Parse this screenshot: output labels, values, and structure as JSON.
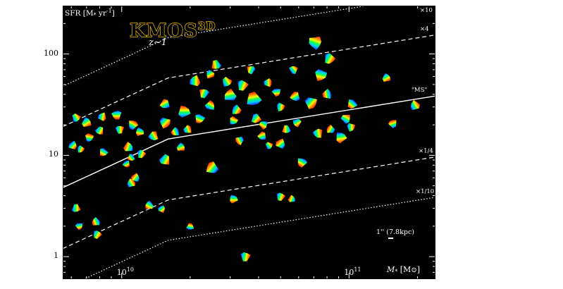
{
  "chart_data": {
    "type": "scatter",
    "title": "KMOS",
    "title_superscript": "3D",
    "subtitle": "z~1",
    "xlabel": "M",
    "xlabel_subscript": "*",
    "xlabel_unit": " [M",
    "xlabel_unit_end": "]",
    "ylabel": "SFR [M",
    "ylabel_unit": "yr",
    "ylabel_exp": "-1",
    "ylabel_end": "]",
    "x_scale": "log",
    "y_scale": "log",
    "xlim": [
      5500000000.0,
      240000000000.0
    ],
    "ylim": [
      0.6,
      300
    ],
    "x_ticks": [
      {
        "value": 10000000000.0,
        "label": "10",
        "exp": "10"
      },
      {
        "value": 100000000000.0,
        "label": "10",
        "exp": "11"
      }
    ],
    "y_ticks": [
      {
        "value": 1,
        "label": "1"
      },
      {
        "value": 10,
        "label": "10"
      },
      {
        "value": 100,
        "label": "100"
      }
    ],
    "grid": false,
    "background": "#000000",
    "scale_bar_label": "1'' (7.8kpc)",
    "sequence_lines": [
      {
        "name": "×10",
        "style": "dotted",
        "factor": 10
      },
      {
        "name": "×4",
        "style": "dashed",
        "factor": 4
      },
      {
        "name": "\"MS\"",
        "style": "solid",
        "factor": 1
      },
      {
        "name": "×1/4",
        "style": "dashed",
        "factor": 0.25
      },
      {
        "name": "×1/10",
        "style": "dotted",
        "factor": 0.1
      }
    ],
    "ms_knots": {
      "x": [
        5500000000.0,
        16000000000.0,
        240000000000.0
      ],
      "y": [
        4.8,
        14.5,
        38.5
      ]
    },
    "points": [
      {
        "x": 6300000000.0,
        "y": 23.5,
        "r": 5,
        "a": -30
      },
      {
        "x": 6100000000.0,
        "y": 12.5,
        "r": 5,
        "a": 45
      },
      {
        "x": 6600000000.0,
        "y": 11.5,
        "r": 4,
        "a": 20
      },
      {
        "x": 7000000000.0,
        "y": 21,
        "r": 6,
        "a": 60
      },
      {
        "x": 7200000000.0,
        "y": 15,
        "r": 5,
        "a": -80
      },
      {
        "x": 8200000000.0,
        "y": 24,
        "r": 5,
        "a": 10
      },
      {
        "x": 8000000000.0,
        "y": 17.5,
        "r": 5,
        "a": 30
      },
      {
        "x": 8300000000.0,
        "y": 10.7,
        "r": 5,
        "a": 120
      },
      {
        "x": 9500000000.0,
        "y": 25,
        "r": 6,
        "a": 90
      },
      {
        "x": 9800000000.0,
        "y": 18,
        "r": 5,
        "a": 0
      },
      {
        "x": 10700000000.0,
        "y": 12,
        "r": 6,
        "a": 200
      },
      {
        "x": 11200000000.0,
        "y": 20,
        "r": 6,
        "a": -60
      },
      {
        "x": 12000000000.0,
        "y": 17,
        "r": 5,
        "a": 100
      },
      {
        "x": 11000000000.0,
        "y": 9.5,
        "r": 4,
        "a": 140
      },
      {
        "x": 10500000000.0,
        "y": 8.2,
        "r": 4,
        "a": 60
      },
      {
        "x": 12200000000.0,
        "y": 10.3,
        "r": 5,
        "a": 20
      },
      {
        "x": 13800000000.0,
        "y": 15.5,
        "r": 6,
        "a": -30
      },
      {
        "x": 15500000000.0,
        "y": 21,
        "r": 7,
        "a": 45
      },
      {
        "x": 15500000000.0,
        "y": 32,
        "r": 6,
        "a": -120
      },
      {
        "x": 15500000000.0,
        "y": 9.0,
        "r": 7,
        "a": 30
      },
      {
        "x": 17200000000.0,
        "y": 17,
        "r": 5,
        "a": 160
      },
      {
        "x": 18800000000.0,
        "y": 27,
        "r": 8,
        "a": -90
      },
      {
        "x": 18200000000.0,
        "y": 12.0,
        "r": 5,
        "a": 70
      },
      {
        "x": 19500000000.0,
        "y": 18,
        "r": 5,
        "a": -20
      },
      {
        "x": 21000000000.0,
        "y": 54,
        "r": 7,
        "a": 0
      },
      {
        "x": 23000000000.0,
        "y": 41,
        "r": 6,
        "a": 200
      },
      {
        "x": 22000000000.0,
        "y": 23,
        "r": 6,
        "a": 110
      },
      {
        "x": 24500000000.0,
        "y": 31,
        "r": 6,
        "a": -60
      },
      {
        "x": 26000000000.0,
        "y": 78,
        "r": 6,
        "a": 170
      },
      {
        "x": 24500000000.0,
        "y": 63,
        "r": 5,
        "a": 60
      },
      {
        "x": 25000000000.0,
        "y": 7.5,
        "r": 8,
        "a": 220
      },
      {
        "x": 29000000000.0,
        "y": 53,
        "r": 6,
        "a": -30
      },
      {
        "x": 30000000000.0,
        "y": 39,
        "r": 8,
        "a": 260
      },
      {
        "x": 32000000000.0,
        "y": 28,
        "r": 6,
        "a": 30
      },
      {
        "x": 34000000000.0,
        "y": 49,
        "r": 7,
        "a": 20
      },
      {
        "x": 31000000000.0,
        "y": 22,
        "r": 5,
        "a": -70
      },
      {
        "x": 33000000000.0,
        "y": 14,
        "r": 5,
        "a": 150
      },
      {
        "x": 31000000000.0,
        "y": 3.7,
        "r": 5,
        "a": 90
      },
      {
        "x": 37000000000.0,
        "y": 70,
        "r": 5,
        "a": 200
      },
      {
        "x": 38000000000.0,
        "y": 36,
        "r": 10,
        "a": -100
      },
      {
        "x": 39000000000.0,
        "y": 23,
        "r": 6,
        "a": 40
      },
      {
        "x": 42000000000.0,
        "y": 20,
        "r": 5,
        "a": 120
      },
      {
        "x": 44000000000.0,
        "y": 52,
        "r": 5,
        "a": 0
      },
      {
        "x": 41500000000.0,
        "y": 15.5,
        "r": 5,
        "a": 250
      },
      {
        "x": 44500000000.0,
        "y": 12.5,
        "r": 4,
        "a": -40
      },
      {
        "x": 48000000000.0,
        "y": 42,
        "r": 5,
        "a": 80
      },
      {
        "x": 50000000000.0,
        "y": 30,
        "r": 5,
        "a": 10
      },
      {
        "x": 53000000000.0,
        "y": 18,
        "r": 5,
        "a": 180
      },
      {
        "x": 50000000000.0,
        "y": 13,
        "r": 6,
        "a": 230
      },
      {
        "x": 58000000000.0,
        "y": 38,
        "r": 6,
        "a": -120
      },
      {
        "x": 59000000000.0,
        "y": 21,
        "r": 5,
        "a": 60
      },
      {
        "x": 57000000000.0,
        "y": 70,
        "r": 5,
        "a": -40
      },
      {
        "x": 62000000000.0,
        "y": 8.5,
        "r": 6,
        "a": 120
      },
      {
        "x": 50000000000.0,
        "y": 3.9,
        "r": 5,
        "a": 20
      },
      {
        "x": 56000000000.0,
        "y": 3.7,
        "r": 4,
        "a": 200
      },
      {
        "x": 68000000000.0,
        "y": 33,
        "r": 8,
        "a": 45
      },
      {
        "x": 71000000000.0,
        "y": 130,
        "r": 9,
        "a": -70
      },
      {
        "x": 75000000000.0,
        "y": 62,
        "r": 8,
        "a": 100
      },
      {
        "x": 80000000000.0,
        "y": 40,
        "r": 6,
        "a": 170
      },
      {
        "x": 82000000000.0,
        "y": 90,
        "r": 7,
        "a": 30
      },
      {
        "x": 73000000000.0,
        "y": 16.5,
        "r": 6,
        "a": -10
      },
      {
        "x": 83000000000.0,
        "y": 18,
        "r": 5,
        "a": 210
      },
      {
        "x": 92000000000.0,
        "y": 15,
        "r": 7,
        "a": 80
      },
      {
        "x": 97000000000.0,
        "y": 23,
        "r": 6,
        "a": -60
      },
      {
        "x": 103000000000.0,
        "y": 32,
        "r": 6,
        "a": 130
      },
      {
        "x": 102000000000.0,
        "y": 19,
        "r": 5,
        "a": 0
      },
      {
        "x": 146000000000.0,
        "y": 58,
        "r": 5,
        "a": 60
      },
      {
        "x": 156000000000.0,
        "y": 20.5,
        "r": 5,
        "a": 250
      },
      {
        "x": 195000000000.0,
        "y": 31,
        "r": 6,
        "a": -30
      },
      {
        "x": 6300000000.0,
        "y": 3.0,
        "r": 5,
        "a": 0
      },
      {
        "x": 6500000000.0,
        "y": 2.0,
        "r": 4,
        "a": 80
      },
      {
        "x": 7700000000.0,
        "y": 2.2,
        "r": 5,
        "a": 160
      },
      {
        "x": 7800000000.0,
        "y": 1.65,
        "r": 5,
        "a": 30
      },
      {
        "x": 11500000000.0,
        "y": 6.0,
        "r": 5,
        "a": 220
      },
      {
        "x": 11000000000.0,
        "y": 5.3,
        "r": 5,
        "a": -30
      },
      {
        "x": 13200000000.0,
        "y": 3.2,
        "r": 5,
        "a": 120
      },
      {
        "x": 15000000000.0,
        "y": 2.95,
        "r": 4,
        "a": 50
      },
      {
        "x": 20000000000.0,
        "y": 1.98,
        "r": 4,
        "a": -80
      },
      {
        "x": 35000000000.0,
        "y": 1.0,
        "r": 6,
        "a": 10
      }
    ]
  }
}
